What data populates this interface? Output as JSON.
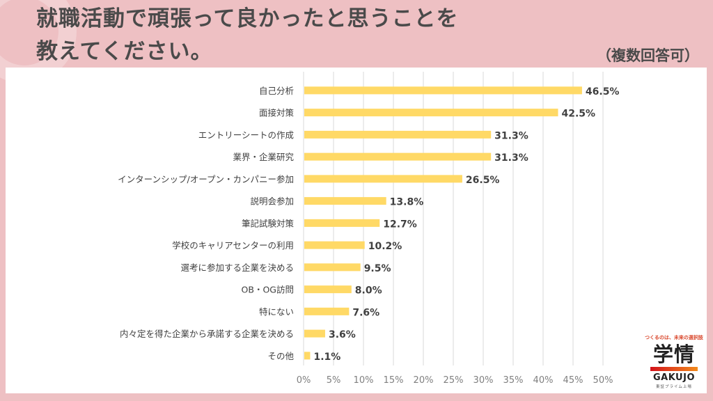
{
  "header": {
    "title_line1": "就職活動で頑張って良かったと思うことを",
    "title_line2": "教えてください。",
    "note": "（複数回答可）"
  },
  "logo": {
    "tagline": "つくるのは、未来の選択肢",
    "mark": "学情",
    "brand": "GAKUJO",
    "sub": "東証プライム上場"
  },
  "colors": {
    "background": "#eec0c3",
    "bar": "#ffd966",
    "gridline": "#d9d9d9",
    "text": "#404040"
  },
  "chart_data": {
    "type": "bar",
    "orientation": "horizontal",
    "title": "就職活動で頑張って良かったと思うことを教えてください。",
    "subtitle": "（複数回答可）",
    "categories": [
      "自己分析",
      "面接対策",
      "エントリーシートの作成",
      "業界・企業研究",
      "インターンシップ/オープン・カンパニー参加",
      "説明会参加",
      "筆記試験対策",
      "学校のキャリアセンターの利用",
      "選考に参加する企業を決める",
      "OB・OG訪問",
      "特にない",
      "内々定を得た企業から承諾する企業を決める",
      "その他"
    ],
    "values": [
      46.5,
      42.5,
      31.3,
      31.3,
      26.5,
      13.8,
      12.7,
      10.2,
      9.5,
      8.0,
      7.6,
      3.6,
      1.1
    ],
    "value_labels": [
      "46.5%",
      "42.5%",
      "31.3%",
      "31.3%",
      "26.5%",
      "13.8%",
      "12.7%",
      "10.2%",
      "9.5%",
      "8.0%",
      "7.6%",
      "3.6%",
      "1.1%"
    ],
    "xlabel": "",
    "ylabel": "",
    "xlim": [
      0,
      50
    ],
    "xticks": [
      0,
      5,
      10,
      15,
      20,
      25,
      30,
      35,
      40,
      45,
      50
    ],
    "xtick_labels": [
      "0%",
      "5%",
      "10%",
      "15%",
      "20%",
      "25%",
      "30%",
      "35%",
      "40%",
      "45%",
      "50%"
    ],
    "grid": true,
    "legend": "none"
  }
}
